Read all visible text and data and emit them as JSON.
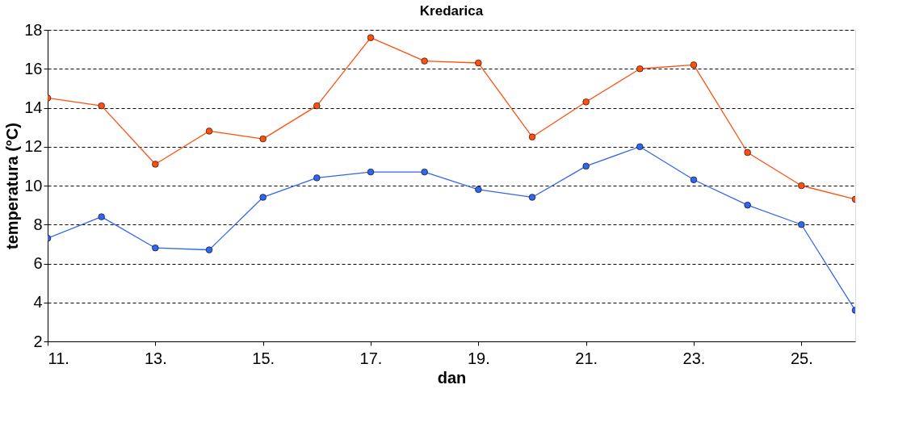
{
  "chart_data": {
    "type": "line",
    "title": "Kredarica",
    "xlabel": "dan",
    "ylabel": "temperatura (°C)",
    "x": [
      11,
      12,
      13,
      14,
      15,
      16,
      17,
      18,
      19,
      20,
      21,
      22,
      23,
      24,
      25,
      26
    ],
    "series": [
      {
        "color": "#ff5010",
        "values": [
          14.5,
          14.1,
          11.1,
          12.8,
          12.4,
          14.1,
          17.6,
          16.4,
          16.3,
          12.5,
          14.3,
          16.0,
          16.2,
          11.7,
          10.0,
          9.3
        ]
      },
      {
        "color": "#3366ee",
        "values": [
          7.3,
          8.4,
          6.8,
          6.7,
          9.4,
          10.4,
          10.7,
          10.7,
          9.8,
          9.4,
          11.0,
          12.0,
          10.3,
          9.0,
          8.0,
          3.6
        ]
      }
    ],
    "xlim": [
      11,
      26
    ],
    "xticks": [
      {
        "value": 11,
        "label": "11."
      },
      {
        "value": 13,
        "label": "13."
      },
      {
        "value": 15,
        "label": "15."
      },
      {
        "value": 17,
        "label": "17."
      },
      {
        "value": 19,
        "label": "19."
      },
      {
        "value": 21,
        "label": "21."
      },
      {
        "value": 23,
        "label": "23."
      },
      {
        "value": 25,
        "label": "25."
      }
    ],
    "ylim": [
      2,
      18
    ],
    "yticks": [
      2,
      4,
      6,
      8,
      10,
      12,
      14,
      16,
      18
    ],
    "grid": "y",
    "legend": false,
    "marker": "circle",
    "line_style": "solid"
  }
}
